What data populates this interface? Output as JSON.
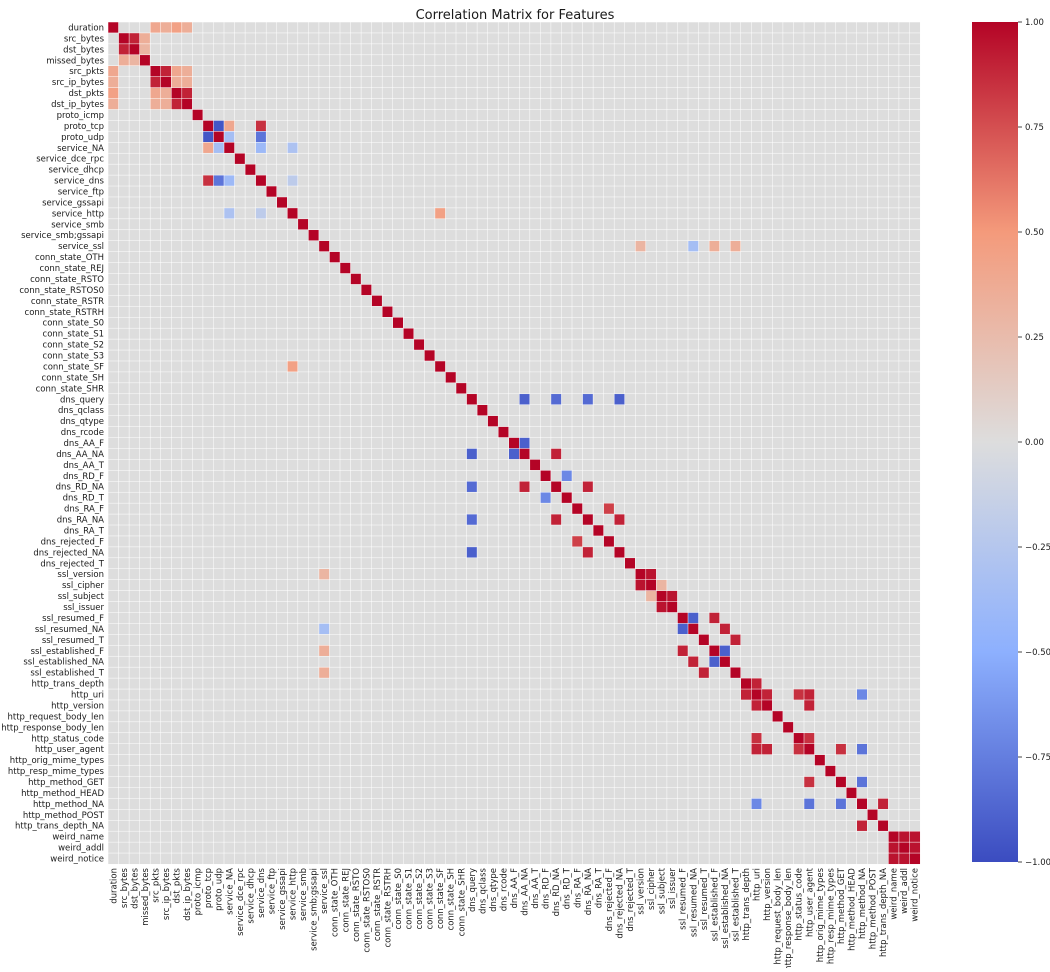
{
  "chart_data": {
    "type": "heatmap",
    "title": "Correlation Matrix for Features",
    "colormap": "coolwarm",
    "vmin": -1.0,
    "vmax": 1.0,
    "colorbar_ticks": [
      "1.00",
      "0.75",
      "0.50",
      "0.25",
      "0.00",
      "−0.25",
      "−0.50",
      "−0.75",
      "−1.00"
    ],
    "colorbar_values": [
      1.0,
      0.75,
      0.5,
      0.25,
      0.0,
      -0.25,
      -0.5,
      -0.75,
      -1.0
    ],
    "labels": [
      "duration",
      "src_bytes",
      "dst_bytes",
      "missed_bytes",
      "src_pkts",
      "src_ip_bytes",
      "dst_pkts",
      "dst_ip_bytes",
      "proto_icmp",
      "proto_tcp",
      "proto_udp",
      "service_NA",
      "service_dce_rpc",
      "service_dhcp",
      "service_dns",
      "service_ftp",
      "service_gssapi",
      "service_http",
      "service_smb",
      "service_smb;gssapi",
      "service_ssl",
      "conn_state_OTH",
      "conn_state_REJ",
      "conn_state_RSTO",
      "conn_state_RSTOS0",
      "conn_state_RSTR",
      "conn_state_RSTRH",
      "conn_state_S0",
      "conn_state_S1",
      "conn_state_S2",
      "conn_state_S3",
      "conn_state_SF",
      "conn_state_SH",
      "conn_state_SHR",
      "dns_query",
      "dns_qclass",
      "dns_qtype",
      "dns_rcode",
      "dns_AA_F",
      "dns_AA_NA",
      "dns_AA_T",
      "dns_RD_F",
      "dns_RD_NA",
      "dns_RD_T",
      "dns_RA_F",
      "dns_RA_NA",
      "dns_RA_T",
      "dns_rejected_F",
      "dns_rejected_NA",
      "dns_rejected_T",
      "ssl_version",
      "ssl_cipher",
      "ssl_subject",
      "ssl_issuer",
      "ssl_resumed_F",
      "ssl_resumed_NA",
      "ssl_resumed_T",
      "ssl_established_F",
      "ssl_established_NA",
      "ssl_established_T",
      "http_trans_depth",
      "http_uri",
      "http_version",
      "http_request_body_len",
      "http_response_body_len",
      "http_status_code",
      "http_user_agent",
      "http_orig_mime_types",
      "http_resp_mime_types",
      "http_method_GET",
      "http_method_HEAD",
      "http_method_NA",
      "http_method_POST",
      "http_trans_depth_NA",
      "weird_name",
      "weird_addl",
      "weird_notice"
    ],
    "grid": false,
    "notable_correlations": [
      {
        "i": 0,
        "j": 4,
        "v": 0.4
      },
      {
        "i": 0,
        "j": 5,
        "v": 0.35
      },
      {
        "i": 0,
        "j": 6,
        "v": 0.45
      },
      {
        "i": 0,
        "j": 7,
        "v": 0.35
      },
      {
        "i": 1,
        "j": 2,
        "v": 0.9
      },
      {
        "i": 1,
        "j": 3,
        "v": 0.35
      },
      {
        "i": 2,
        "j": 3,
        "v": 0.3
      },
      {
        "i": 4,
        "j": 5,
        "v": 0.9
      },
      {
        "i": 4,
        "j": 6,
        "v": 0.4
      },
      {
        "i": 4,
        "j": 7,
        "v": 0.35
      },
      {
        "i": 5,
        "j": 6,
        "v": 0.35
      },
      {
        "i": 5,
        "j": 7,
        "v": 0.35
      },
      {
        "i": 6,
        "j": 7,
        "v": 0.9
      },
      {
        "i": 9,
        "j": 10,
        "v": -0.95
      },
      {
        "i": 9,
        "j": 11,
        "v": 0.4
      },
      {
        "i": 9,
        "j": 14,
        "v": 0.85
      },
      {
        "i": 10,
        "j": 11,
        "v": -0.35
      },
      {
        "i": 10,
        "j": 14,
        "v": -0.8
      },
      {
        "i": 11,
        "j": 14,
        "v": -0.4
      },
      {
        "i": 11,
        "j": 17,
        "v": -0.3
      },
      {
        "i": 14,
        "j": 17,
        "v": -0.2
      },
      {
        "i": 17,
        "j": 31,
        "v": 0.45
      },
      {
        "i": 20,
        "j": 50,
        "v": 0.3
      },
      {
        "i": 20,
        "j": 55,
        "v": -0.35
      },
      {
        "i": 20,
        "j": 57,
        "v": 0.35
      },
      {
        "i": 20,
        "j": 59,
        "v": 0.35
      },
      {
        "i": 34,
        "j": 39,
        "v": -0.9
      },
      {
        "i": 34,
        "j": 42,
        "v": -0.85
      },
      {
        "i": 34,
        "j": 45,
        "v": -0.85
      },
      {
        "i": 34,
        "j": 48,
        "v": -0.9
      },
      {
        "i": 38,
        "j": 39,
        "v": -0.9
      },
      {
        "i": 39,
        "j": 42,
        "v": 0.9
      },
      {
        "i": 42,
        "j": 45,
        "v": 0.9
      },
      {
        "i": 45,
        "j": 48,
        "v": 0.9
      },
      {
        "i": 41,
        "j": 43,
        "v": -0.7
      },
      {
        "i": 44,
        "j": 47,
        "v": 0.8
      },
      {
        "i": 50,
        "j": 51,
        "v": 0.95
      },
      {
        "i": 51,
        "j": 52,
        "v": 0.3
      },
      {
        "i": 52,
        "j": 53,
        "v": 0.95
      },
      {
        "i": 54,
        "j": 55,
        "v": -0.9
      },
      {
        "i": 54,
        "j": 57,
        "v": 0.9
      },
      {
        "i": 55,
        "j": 58,
        "v": 0.9
      },
      {
        "i": 56,
        "j": 59,
        "v": 0.9
      },
      {
        "i": 57,
        "j": 58,
        "v": -0.9
      },
      {
        "i": 60,
        "j": 61,
        "v": 0.9
      },
      {
        "i": 61,
        "j": 62,
        "v": 0.9
      },
      {
        "i": 61,
        "j": 65,
        "v": 0.85
      },
      {
        "i": 61,
        "j": 66,
        "v": 0.9
      },
      {
        "i": 62,
        "j": 66,
        "v": 0.9
      },
      {
        "i": 65,
        "j": 66,
        "v": 0.85
      },
      {
        "i": 66,
        "j": 69,
        "v": 0.85
      },
      {
        "i": 61,
        "j": 71,
        "v": -0.7
      },
      {
        "i": 66,
        "j": 71,
        "v": -0.8
      },
      {
        "i": 69,
        "j": 71,
        "v": -0.8
      },
      {
        "i": 71,
        "j": 73,
        "v": 0.9
      },
      {
        "i": 74,
        "j": 75,
        "v": 0.95
      },
      {
        "i": 74,
        "j": 76,
        "v": 0.95
      },
      {
        "i": 75,
        "j": 76,
        "v": 0.95
      }
    ]
  }
}
